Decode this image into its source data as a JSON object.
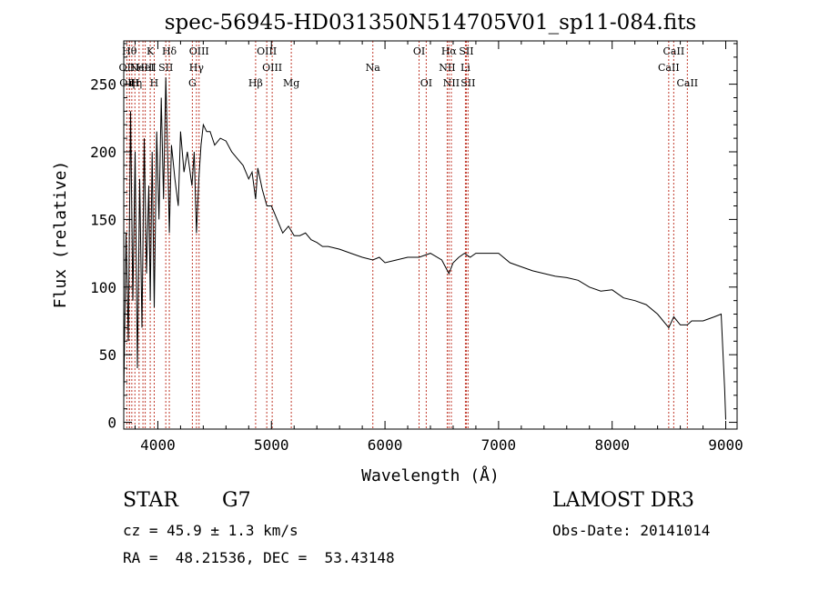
{
  "chart_data": {
    "type": "line",
    "title": "spec-56945-HD031350N514705V01_sp11-084.fits",
    "xlabel": "Wavelength (Å)",
    "ylabel": "Flux (relative)",
    "xlim": [
      3700,
      9100
    ],
    "ylim": [
      -5,
      282
    ],
    "xticks": [
      4000,
      5000,
      6000,
      7000,
      8000,
      9000
    ],
    "xtick_labels": [
      "4000",
      "5000",
      "6000",
      "7000",
      "8000",
      "9000"
    ],
    "yticks": [
      0,
      50,
      100,
      150,
      200,
      250
    ],
    "ytick_labels": [
      "0",
      "50",
      "100",
      "150",
      "200",
      "250"
    ],
    "grid": false,
    "series": [
      {
        "x": [
          3700,
          3720,
          3740,
          3760,
          3780,
          3800,
          3820,
          3840,
          3860,
          3880,
          3900,
          3920,
          3933,
          3950,
          3968,
          3990,
          4010,
          4030,
          4050,
          4070,
          4090,
          4101,
          4120,
          4150,
          4180,
          4200,
          4230,
          4260,
          4300,
          4320,
          4340,
          4361,
          4380,
          4400,
          4430,
          4460,
          4500,
          4550,
          4600,
          4650,
          4700,
          4750,
          4800,
          4830,
          4861,
          4880,
          4920,
          4960,
          5000,
          5050,
          5100,
          5150,
          5200,
          5250,
          5300,
          5350,
          5400,
          5450,
          5500,
          5600,
          5700,
          5800,
          5893,
          5950,
          6000,
          6100,
          6200,
          6300,
          6400,
          6500,
          6563,
          6600,
          6650,
          6700,
          6750,
          6800,
          6900,
          7000,
          7100,
          7200,
          7300,
          7400,
          7500,
          7600,
          7700,
          7800,
          7900,
          8000,
          8100,
          8200,
          8300,
          8400,
          8498,
          8542,
          8600,
          8662,
          8700,
          8800,
          8900,
          8960,
          8990,
          9000
        ],
        "y": [
          20,
          140,
          60,
          230,
          90,
          200,
          40,
          180,
          70,
          210,
          110,
          175,
          90,
          200,
          85,
          215,
          150,
          240,
          165,
          255,
          185,
          140,
          205,
          180,
          160,
          215,
          185,
          200,
          175,
          200,
          140,
          180,
          205,
          220,
          215,
          215,
          205,
          210,
          208,
          200,
          195,
          190,
          180,
          185,
          165,
          188,
          172,
          160,
          160,
          150,
          140,
          145,
          138,
          138,
          140,
          135,
          133,
          130,
          130,
          128,
          125,
          122,
          120,
          122,
          118,
          120,
          122,
          122,
          125,
          120,
          110,
          118,
          122,
          125,
          122,
          125,
          125,
          125,
          118,
          115,
          112,
          110,
          108,
          107,
          105,
          100,
          97,
          98,
          92,
          90,
          87,
          80,
          70,
          78,
          72,
          72,
          75,
          75,
          78,
          80,
          25,
          2
        ]
      }
    ],
    "lines": [
      {
        "w": 3727,
        "label": "OII",
        "row": 1
      },
      {
        "w": 3750,
        "label": "OIII",
        "row": 2
      },
      {
        "w": 3750,
        "label": "Hθ",
        "row": 0
      },
      {
        "w": 3771,
        "label": "η",
        "row": 2
      },
      {
        "w": 3798,
        "label": "H",
        "row": 2
      },
      {
        "w": 3835,
        "label": "η",
        "row": 2
      },
      {
        "w": 3869,
        "label": "NeIII",
        "row": 1
      },
      {
        "w": 3889,
        "label": "HeI",
        "row": 1
      },
      {
        "w": 3933,
        "label": "K",
        "row": 0
      },
      {
        "w": 3968,
        "label": "H",
        "row": 2
      },
      {
        "w": 4070,
        "label": "SII",
        "row": 1
      },
      {
        "w": 4101,
        "label": "Hδ",
        "row": 0
      },
      {
        "w": 4304,
        "label": "G",
        "row": 2
      },
      {
        "w": 4340,
        "label": "Hγ",
        "row": 1
      },
      {
        "w": 4363,
        "label": "OIII",
        "row": 0
      },
      {
        "w": 4861,
        "label": "Hβ",
        "row": 2
      },
      {
        "w": 4959,
        "label": "OIII",
        "row": 0
      },
      {
        "w": 5007,
        "label": "OIII",
        "row": 1
      },
      {
        "w": 5175,
        "label": "Mg",
        "row": 2
      },
      {
        "w": 5893,
        "label": "Na",
        "row": 1
      },
      {
        "w": 6300,
        "label": "OI",
        "row": 0
      },
      {
        "w": 6363,
        "label": "OI",
        "row": 2
      },
      {
        "w": 6548,
        "label": "NII",
        "row": 1
      },
      {
        "w": 6563,
        "label": "Hα",
        "row": 0
      },
      {
        "w": 6584,
        "label": "NII",
        "row": 2
      },
      {
        "w": 6708,
        "label": "Li",
        "row": 1
      },
      {
        "w": 6716,
        "label": "SII",
        "row": 0
      },
      {
        "w": 6731,
        "label": "SII",
        "row": 2
      },
      {
        "w": 8498,
        "label": "CaII",
        "row": 1
      },
      {
        "w": 8542,
        "label": "CaII",
        "row": 0
      },
      {
        "w": 8662,
        "label": "CaII",
        "row": 2
      }
    ]
  },
  "info": {
    "class": "STAR",
    "subclass": "G7",
    "survey": "LAMOST DR3",
    "redshift": "cz = 45.9 ± 1.3 km/s",
    "obsdate": "Obs-Date: 20141014",
    "coords": "RA =  48.21536, DEC =  53.43148"
  },
  "colors": {
    "line_marker": "#c0392b",
    "spectrum": "#000000",
    "axes": "#000000"
  }
}
